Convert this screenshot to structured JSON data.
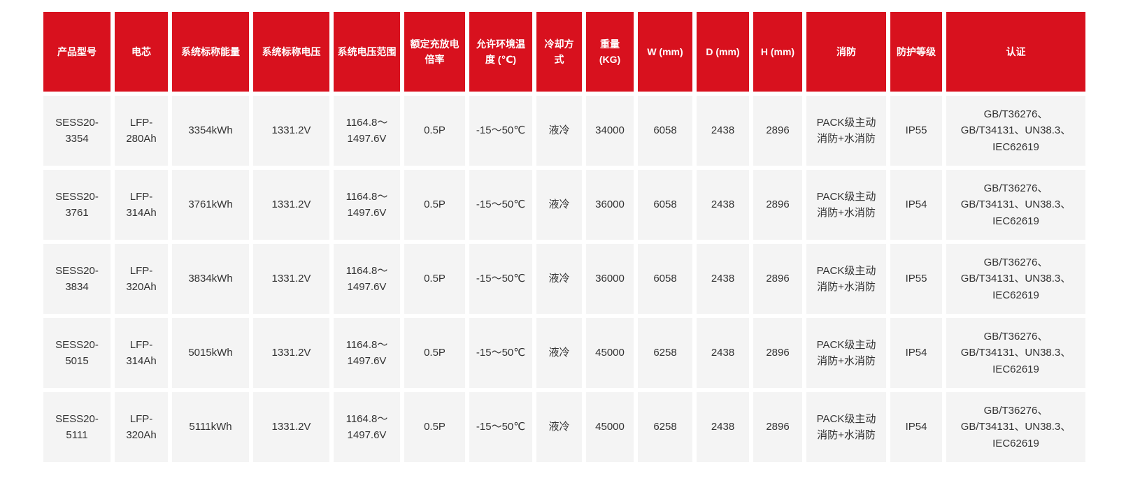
{
  "theme": {
    "header_bg": "#d8111e",
    "header_text": "#ffffff",
    "cell_bg": "#f4f4f4",
    "cell_text": "#333333",
    "page_bg": "#ffffff"
  },
  "table": {
    "columns": [
      {
        "label": "产品型号"
      },
      {
        "label": "电芯"
      },
      {
        "label": "系统标称能量"
      },
      {
        "label": "系统标称电压"
      },
      {
        "label": "系统电压范围"
      },
      {
        "label": "额定充放电倍率"
      },
      {
        "label": "允许环境温度 (℃)"
      },
      {
        "label": "冷却方式"
      },
      {
        "label": "重量 (KG)"
      },
      {
        "label": "W (mm)"
      },
      {
        "label": "D (mm)"
      },
      {
        "label": "H (mm)"
      },
      {
        "label": "消防"
      },
      {
        "label": "防护等级"
      },
      {
        "label": "认证"
      }
    ],
    "rows": [
      [
        "SESS20-3354",
        "LFP-280Ah",
        "3354kWh",
        "1331.2V",
        "1164.8～1497.6V",
        "0.5P",
        "-15～50℃",
        "液冷",
        "34000",
        "6058",
        "2438",
        "2896",
        "PACK级主动消防+水消防",
        "IP55",
        "GB/T36276、GB/T34131、UN38.3、IEC62619"
      ],
      [
        "SESS20-3761",
        "LFP-314Ah",
        "3761kWh",
        "1331.2V",
        "1164.8～1497.6V",
        "0.5P",
        "-15～50℃",
        "液冷",
        "36000",
        "6058",
        "2438",
        "2896",
        "PACK级主动消防+水消防",
        "IP54",
        "GB/T36276、GB/T34131、UN38.3、IEC62619"
      ],
      [
        "SESS20-3834",
        "LFP-320Ah",
        "3834kWh",
        "1331.2V",
        "1164.8～1497.6V",
        "0.5P",
        "-15～50℃",
        "液冷",
        "36000",
        "6058",
        "2438",
        "2896",
        "PACK级主动消防+水消防",
        "IP55",
        "GB/T36276、GB/T34131、UN38.3、IEC62619"
      ],
      [
        "SESS20-5015",
        "LFP-314Ah",
        "5015kWh",
        "1331.2V",
        "1164.8～1497.6V",
        "0.5P",
        "-15～50℃",
        "液冷",
        "45000",
        "6258",
        "2438",
        "2896",
        "PACK级主动消防+水消防",
        "IP54",
        "GB/T36276、GB/T34131、UN38.3、IEC62619"
      ],
      [
        "SESS20-5111",
        "LFP-320Ah",
        "5111kWh",
        "1331.2V",
        "1164.8～1497.6V",
        "0.5P",
        "-15～50℃",
        "液冷",
        "45000",
        "6258",
        "2438",
        "2896",
        "PACK级主动消防+水消防",
        "IP54",
        "GB/T36276、GB/T34131、UN38.3、IEC62619"
      ]
    ]
  }
}
